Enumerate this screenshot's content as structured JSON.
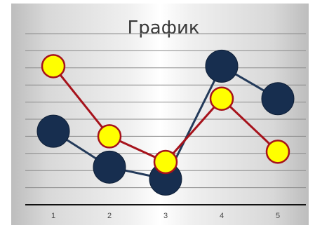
{
  "chart_data": {
    "type": "line",
    "title": "График",
    "categories": [
      "1",
      "2",
      "3",
      "4",
      "5"
    ],
    "series": [
      {
        "values": [
          4.3,
          2.2,
          1.5,
          8.1,
          6.2
        ],
        "color": "#172e4f",
        "line_color": "#233a5a",
        "marker": "large-dark-circle"
      },
      {
        "values": [
          8.1,
          4.0,
          2.5,
          6.2,
          3.1
        ],
        "color": "#ffff00",
        "line_color": "#a6121b",
        "marker": "yellow-circle-red-outline"
      }
    ],
    "ylim": [
      0,
      10
    ],
    "grid": true,
    "legend": "none"
  }
}
